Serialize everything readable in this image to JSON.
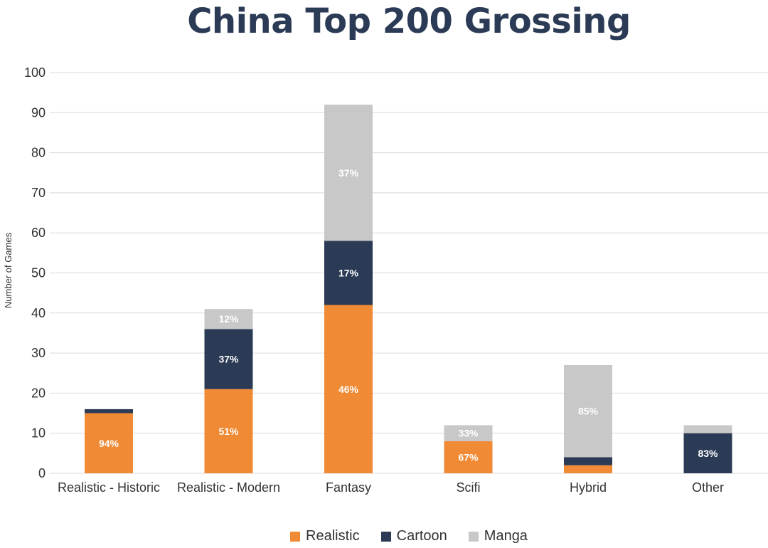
{
  "chart_data": {
    "type": "bar",
    "stacked": true,
    "title": "China Top 200 Grossing",
    "ylabel": "Number of Games",
    "xlabel": "",
    "ylim": [
      0,
      100
    ],
    "yticks": [
      0,
      10,
      20,
      30,
      40,
      50,
      60,
      70,
      80,
      90,
      100
    ],
    "grid": true,
    "legend_position": "bottom",
    "categories": [
      "Realistic - Historic",
      "Realistic - Modern",
      "Fantasy",
      "Scifi",
      "Hybrid",
      "Other"
    ],
    "series": [
      {
        "name": "Realistic",
        "color": "#f08a34",
        "values": [
          15,
          21,
          42,
          8,
          2,
          0
        ],
        "labels": [
          "94%",
          "51%",
          "46%",
          "67%",
          "",
          ""
        ]
      },
      {
        "name": "Cartoon",
        "color": "#2b3a55",
        "values": [
          1,
          15,
          16,
          0,
          2,
          10
        ],
        "labels": [
          "",
          "37%",
          "17%",
          "",
          "",
          "83%"
        ]
      },
      {
        "name": "Manga",
        "color": "#c8c8c8",
        "values": [
          0,
          5,
          34,
          4,
          23,
          2
        ],
        "labels": [
          "",
          "12%",
          "37%",
          "33%",
          "85%",
          ""
        ]
      }
    ]
  }
}
